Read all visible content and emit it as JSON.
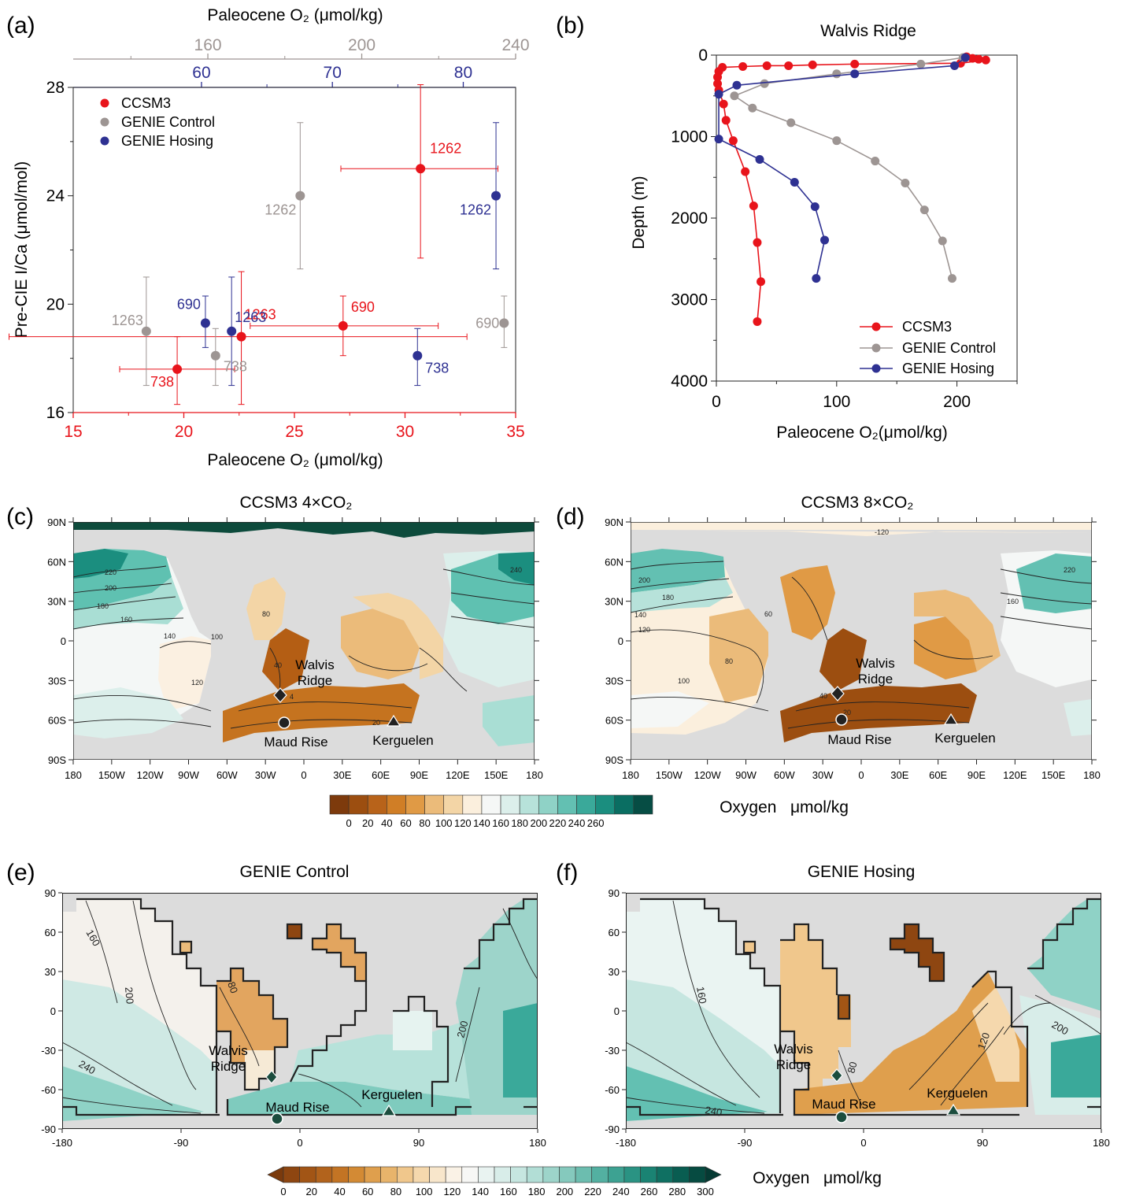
{
  "colors": {
    "ccsm3": "#e8141b",
    "genie_control": "#9d9593",
    "genie_hosing": "#2e3192",
    "land": "#dcdcdc",
    "outline": "#2b2b2b"
  },
  "panel_labels": [
    "(a)",
    "(b)",
    "(c)",
    "(d)",
    "(e)",
    "(f)"
  ],
  "chart_data": [
    {
      "panel": "(a)",
      "type": "scatter",
      "title": "",
      "xlabel": "Paleocene O₂ (μmol/kg)",
      "ylabel": "Pre-CIE I/Ca (μmol/mol)",
      "top_axis_label": "Paleocene O₂ (μmol/kg)",
      "xlim": [
        15,
        35
      ],
      "xticks": [
        "15",
        "20",
        "25",
        "30",
        "35"
      ],
      "top_axis_genie_control": {
        "range": [
          125,
          240
        ],
        "ticks": [
          "160",
          "200",
          "240"
        ]
      },
      "top_axis_genie_hosing": {
        "range": [
          50.2,
          84.0
        ],
        "ticks": [
          "60",
          "70",
          "80"
        ]
      },
      "ylim": [
        16,
        28
      ],
      "yticks": [
        "16",
        "20",
        "24",
        "28"
      ],
      "legend_position": "top-left",
      "series": [
        {
          "name": "CCSM3",
          "x_axis": "bottom",
          "points": [
            {
              "label": "1262",
              "x": 30.7,
              "y": 25.0,
              "xerr": [
                27.1,
                34.2
              ],
              "yerr": [
                21.7,
                28.1
              ]
            },
            {
              "label": "1263",
              "x": 22.6,
              "y": 18.8,
              "xerr": [
                12.1,
                32.8
              ],
              "yerr": [
                16.3,
                21.2
              ]
            },
            {
              "label": "690",
              "x": 27.2,
              "y": 19.2,
              "xerr": [
                23.0,
                31.5
              ],
              "yerr": [
                18.1,
                20.3
              ]
            },
            {
              "label": "738",
              "x": 19.7,
              "y": 17.6,
              "xerr": [
                17.1,
                22.3
              ],
              "yerr": [
                16.3,
                18.8
              ]
            }
          ]
        },
        {
          "name": "GENIE Control",
          "x_axis": "top-grey",
          "points": [
            {
              "label": "1262",
              "x": 184,
              "y": 24.0,
              "yerr": [
                21.3,
                26.7
              ]
            },
            {
              "label": "1263",
              "x": 144,
              "y": 19.0,
              "yerr": [
                17.0,
                21.0
              ]
            },
            {
              "label": "690",
              "x": 237,
              "y": 19.3,
              "yerr": [
                18.4,
                20.3
              ]
            },
            {
              "label": "738",
              "x": 162,
              "y": 18.1,
              "yerr": [
                17.0,
                19.1
              ]
            }
          ]
        },
        {
          "name": "GENIE Hosing",
          "x_axis": "top-blue",
          "points": [
            {
              "label": "1262",
              "x": 82.5,
              "y": 24.0,
              "yerr": [
                21.3,
                26.7
              ]
            },
            {
              "label": "1263",
              "x": 62.3,
              "y": 19.0,
              "yerr": [
                17.0,
                21.0
              ]
            },
            {
              "label": "690",
              "x": 60.3,
              "y": 19.3,
              "yerr": [
                18.4,
                20.3
              ]
            },
            {
              "label": "738",
              "x": 76.5,
              "y": 18.1,
              "yerr": [
                17.0,
                19.1
              ]
            }
          ]
        }
      ]
    },
    {
      "panel": "(b)",
      "type": "line",
      "title": "Walvis Ridge",
      "xlabel": "Paleocene O₂(μmol/kg)",
      "ylabel": "Depth (m)",
      "xlim": [
        0,
        250
      ],
      "xticks": [
        "0",
        "100",
        "200"
      ],
      "ylim": [
        4000,
        0
      ],
      "yticks": [
        "0",
        "1000",
        "2000",
        "3000",
        "4000"
      ],
      "legend_position": "bottom-right",
      "series": [
        {
          "name": "CCSM3",
          "x": [
            208,
            213,
            218,
            224,
            203,
            115,
            80,
            60,
            42,
            22,
            5,
            2,
            1,
            1,
            2,
            6,
            8,
            14,
            24,
            31,
            34,
            37,
            34
          ],
          "y": [
            20,
            40,
            50,
            60,
            100,
            110,
            120,
            130,
            130,
            140,
            150,
            200,
            270,
            350,
            430,
            600,
            800,
            1050,
            1430,
            1850,
            2300,
            2780,
            3270
          ]
        },
        {
          "name": "GENIE Control",
          "x": [
            205,
            170,
            100,
            40,
            15,
            30,
            62,
            100,
            132,
            157,
            173,
            188,
            196
          ],
          "y": [
            30,
            110,
            230,
            350,
            500,
            650,
            830,
            1050,
            1300,
            1570,
            1900,
            2280,
            2740
          ]
        },
        {
          "name": "GENIE Hosing",
          "x": [
            207,
            198,
            115,
            17,
            2,
            2,
            36,
            65,
            82,
            90,
            83
          ],
          "y": [
            30,
            130,
            230,
            370,
            480,
            1030,
            1280,
            1560,
            1860,
            2270,
            2740
          ]
        }
      ]
    }
  ],
  "panel_c": {
    "title": "CCSM3  4×CO₂"
  },
  "panel_d": {
    "title": "CCSM3  8×CO₂"
  },
  "panel_e": {
    "title": "GENIE Control"
  },
  "panel_f": {
    "title": "GENIE Hosing"
  },
  "map_ccsm": {
    "lat_ticks": [
      "90N",
      "60N",
      "30N",
      "0",
      "30S",
      "60S",
      "90S"
    ],
    "lon_ticks": [
      "180",
      "150W",
      "120W",
      "90W",
      "60W",
      "30W",
      "0",
      "30E",
      "60E",
      "90E",
      "120E",
      "150E",
      "180"
    ]
  },
  "map_genie": {
    "lat_ticks": [
      "90",
      "60",
      "30",
      "0",
      "-30",
      "-60",
      "-90"
    ],
    "lon_ticks": [
      "-180",
      "-90",
      "0",
      "90",
      "180"
    ]
  },
  "sites": {
    "walvis": "Walvis\nRidge",
    "maud": "Maud Rise",
    "kerguelen": "Kerguelen"
  },
  "colorbar_ccsm": {
    "label": "Oxygen   μmol/kg",
    "ticks": [
      "0",
      "20",
      "40",
      "60",
      "80",
      "100",
      "120",
      "140",
      "160",
      "180",
      "200",
      "220",
      "240",
      "260"
    ],
    "colors": [
      "#7d3a0c",
      "#9c4e10",
      "#b8631a",
      "#d07e26",
      "#e09a45",
      "#ebbb7a",
      "#f3d5a6",
      "#fbefdd",
      "#f5f7f6",
      "#dcefeb",
      "#b7e2da",
      "#8fd2c6",
      "#63c0b2",
      "#3aa99a",
      "#1b8e7f",
      "#0a6e62",
      "#064d44"
    ]
  },
  "colorbar_genie": {
    "label": "Oxygen   μmol/kg",
    "ticks": [
      "0",
      "20",
      "40",
      "60",
      "80",
      "100",
      "120",
      "140",
      "160",
      "180",
      "200",
      "220",
      "240",
      "260",
      "280",
      "300"
    ],
    "colors": [
      "#7a3a0d",
      "#8e4611",
      "#a25515",
      "#b2631c",
      "#c37424",
      "#d38a34",
      "#df9f4d",
      "#e8b46b",
      "#f0c78c",
      "#f5d8ad",
      "#f8e6cb",
      "#faf2e6",
      "#f7f7f5",
      "#e9f3f1",
      "#d8ede9",
      "#c6e6e0",
      "#b2ded6",
      "#9dd4ca",
      "#85c9bd",
      "#6cbdaf",
      "#53b0a1",
      "#3da292",
      "#2a9383",
      "#1a8373",
      "#0f7062",
      "#095d51",
      "#064b41",
      "#053a33"
    ]
  },
  "ccsm_contours_c": [
    "220",
    "200",
    "180",
    "160",
    "140",
    "120",
    "100",
    "80",
    "40",
    "4",
    "20",
    "240"
  ],
  "ccsm_contours_d": [
    "200",
    "180",
    "140",
    "120",
    "100",
    "80",
    "60",
    "40",
    "20",
    "160",
    "220",
    "-120"
  ],
  "genie_contours_e": [
    "160",
    "200",
    "240",
    "80",
    "200"
  ],
  "genie_contours_f": [
    "160",
    "200",
    "240",
    "80",
    "120"
  ]
}
